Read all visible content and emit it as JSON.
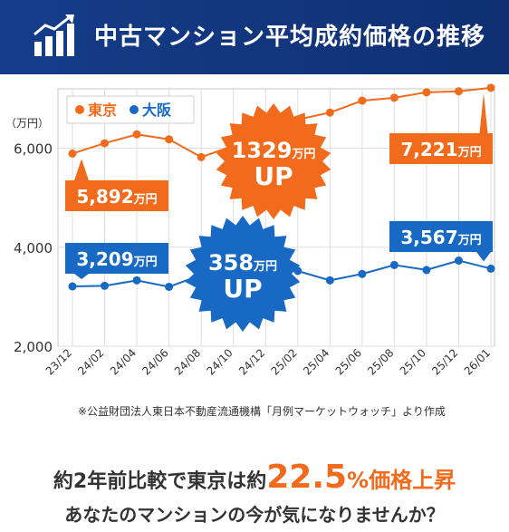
{
  "header": {
    "title": "中古マンション平均成約価格の推移",
    "icon": "bar-chart-up-icon"
  },
  "colors": {
    "header_bg": "#153d8a",
    "tokyo": "#f26a1b",
    "osaka": "#1769c4",
    "text": "#333333"
  },
  "chart_data": {
    "type": "line",
    "unit_label": "（万円）",
    "yticks": [
      "2,000",
      "4,000",
      "6,000"
    ],
    "y_tick_values": [
      2000,
      4000,
      6000
    ],
    "ylim": [
      2000,
      7200
    ],
    "x": [
      "23/12",
      "24/02",
      "24/04",
      "24/06",
      "24/08",
      "24/10",
      "24/12",
      "25/02",
      "25/04",
      "25/06",
      "25/08",
      "25/10",
      "25/12",
      "26/01"
    ],
    "series": [
      {
        "name": "東京",
        "values": [
          5892,
          6100,
          6280,
          6180,
          5820,
          6050,
          6320,
          6580,
          6720,
          6960,
          7020,
          7130,
          7150,
          7221
        ]
      },
      {
        "name": "大阪",
        "values": [
          3209,
          3220,
          3330,
          3200,
          3440,
          3560,
          3620,
          3520,
          3330,
          3460,
          3640,
          3540,
          3730,
          3567
        ]
      }
    ],
    "value_labels": {
      "tokyo_start": {
        "num": "5,892",
        "unit": "万円"
      },
      "tokyo_end": {
        "num": "7,221",
        "unit": "万円"
      },
      "osaka_start": {
        "num": "3,209",
        "unit": "万円"
      },
      "osaka_end": {
        "num": "3,567",
        "unit": "万円"
      }
    },
    "badges": {
      "tokyo": {
        "num": "1329",
        "unit": "万円",
        "up": "UP"
      },
      "osaka": {
        "num": "358",
        "unit": "万円",
        "up": "UP"
      }
    },
    "source_note": "※公益財団法人東日本不動産流通機構「月例マーケットウォッチ」より作成",
    "legend_placement": "top-left"
  },
  "footer": {
    "line1_a": "約2年前比較で東京は約",
    "line1_big": "22.5",
    "line1_pct": "%",
    "line1_tail": "価格上昇",
    "line2": "あなたのマンションの今が気になりませんか？"
  }
}
